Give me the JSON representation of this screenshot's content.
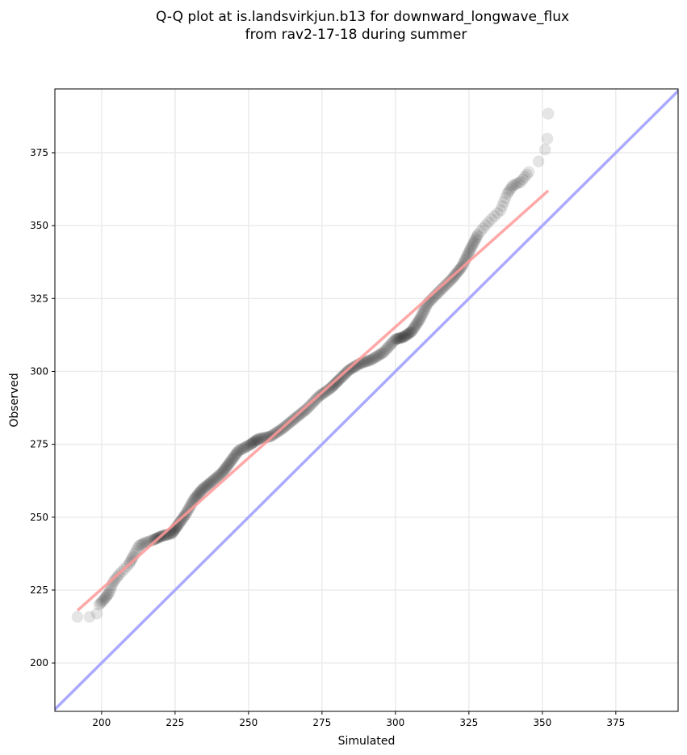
{
  "chart_data": {
    "type": "scatter",
    "title": [
      "Q-Q plot at is.landsvirkjun.b13 for downward_longwave_flux",
      "from rav2-17-18 during summer"
    ],
    "xlabel": "Simulated",
    "ylabel": "Observed",
    "xlim": [
      184.1,
      396.2
    ],
    "ylim": [
      183.4,
      396.9
    ],
    "xticks": [
      200,
      225,
      250,
      275,
      300,
      325,
      350,
      375
    ],
    "yticks": [
      200,
      225,
      250,
      275,
      300,
      325,
      350,
      375
    ],
    "grid": true,
    "points": [
      [
        191.8,
        215.8
      ],
      [
        195.9,
        215.8
      ],
      [
        198.4,
        216.9
      ],
      [
        199.2,
        220
      ],
      [
        201,
        222
      ],
      [
        202.5,
        224
      ],
      [
        203.9,
        227.7
      ],
      [
        206.1,
        230.5
      ],
      [
        209.4,
        234
      ],
      [
        210.8,
        236.6
      ],
      [
        212.7,
        240.2
      ],
      [
        214.9,
        241.3
      ],
      [
        217.6,
        242.2
      ],
      [
        220.4,
        243.5
      ],
      [
        223.9,
        244.4
      ],
      [
        225.9,
        247.2
      ],
      [
        228.6,
        251
      ],
      [
        231.4,
        256
      ],
      [
        234.1,
        259.4
      ],
      [
        237.4,
        262.1
      ],
      [
        241,
        265.2
      ],
      [
        243.7,
        268.8
      ],
      [
        246.5,
        272.7
      ],
      [
        250.6,
        274.9
      ],
      [
        253.3,
        276.8
      ],
      [
        257.5,
        277.7
      ],
      [
        261.6,
        280.4
      ],
      [
        265.7,
        283.8
      ],
      [
        269.8,
        287.1
      ],
      [
        274,
        291.5
      ],
      [
        278,
        294.3
      ],
      [
        280.8,
        297.1
      ],
      [
        284.1,
        300.4
      ],
      [
        287.7,
        302.6
      ],
      [
        291.8,
        304
      ],
      [
        295.9,
        306.5
      ],
      [
        300,
        311
      ],
      [
        302.8,
        311.8
      ],
      [
        305.5,
        313.7
      ],
      [
        308.3,
        317.9
      ],
      [
        311,
        323.4
      ],
      [
        315.1,
        327.6
      ],
      [
        319.3,
        331.8
      ],
      [
        322.6,
        335.9
      ],
      [
        325.3,
        341.5
      ],
      [
        328.1,
        347
      ],
      [
        331.6,
        351.2
      ],
      [
        335.8,
        355.3
      ],
      [
        338,
        360.9
      ],
      [
        339.9,
        363.7
      ],
      [
        342.6,
        365
      ],
      [
        345.4,
        368.4
      ],
      [
        348.7,
        372
      ],
      [
        350.9,
        376.1
      ],
      [
        351.7,
        379.8
      ],
      [
        352,
        388.4
      ]
    ],
    "fit_line": {
      "x": [
        191.8,
        352
      ],
      "y": [
        218,
        362
      ],
      "color": "#ff9999"
    },
    "identity_line": {
      "color": "#aaaaff"
    },
    "marker_color": "#000000"
  }
}
